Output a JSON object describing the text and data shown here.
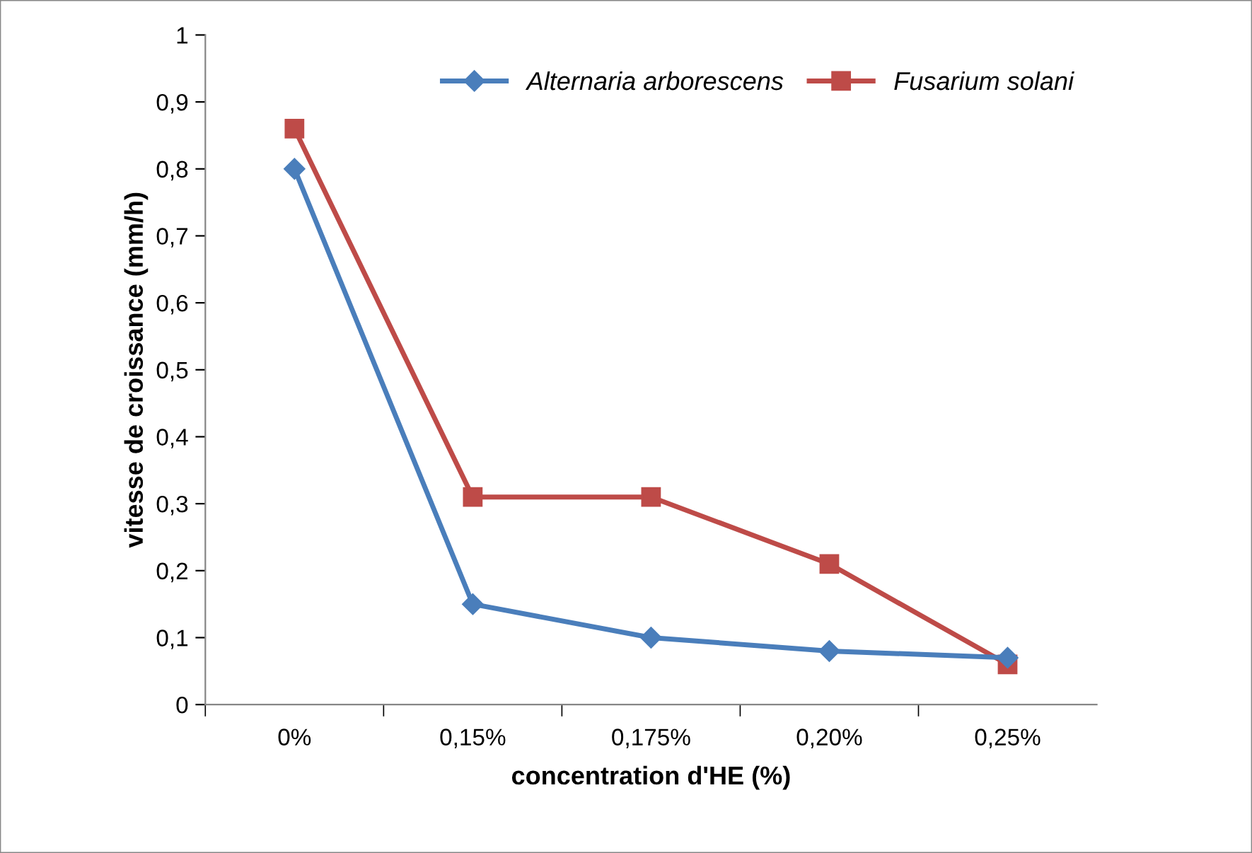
{
  "chart_data": {
    "type": "line",
    "xlabel": "concentration d'HE (%)",
    "ylabel": "vitesse de croissance (mm/h)",
    "categories": [
      "0%",
      "0,15%",
      "0,175%",
      "0,20%",
      "0,25%"
    ],
    "series": [
      {
        "name": "Alternaria arborescens",
        "color": "#4a7ebb",
        "marker": "diamond",
        "values": [
          0.8,
          0.15,
          0.1,
          0.08,
          0.07
        ]
      },
      {
        "name": "Fusarium solani",
        "color": "#be4b48",
        "marker": "square",
        "values": [
          0.86,
          0.31,
          0.31,
          0.21,
          0.06
        ]
      }
    ],
    "ylim": [
      0,
      1
    ],
    "yticks": [
      0,
      {
        "value": 0.1,
        "label": "0,1"
      },
      {
        "value": 0.2,
        "label": "0,2"
      },
      {
        "value": 0.3,
        "label": "0,3"
      },
      {
        "value": 0.4,
        "label": "0,4"
      },
      {
        "value": 0.5,
        "label": "0,5"
      },
      {
        "value": 0.6,
        "label": "0,6"
      },
      {
        "value": 0.7,
        "label": "0,7"
      },
      {
        "value": 0.8,
        "label": "0,8"
      },
      {
        "value": 0.9,
        "label": "0,9"
      },
      1
    ],
    "grid": false,
    "legend": "top right",
    "line_style": "solid"
  }
}
